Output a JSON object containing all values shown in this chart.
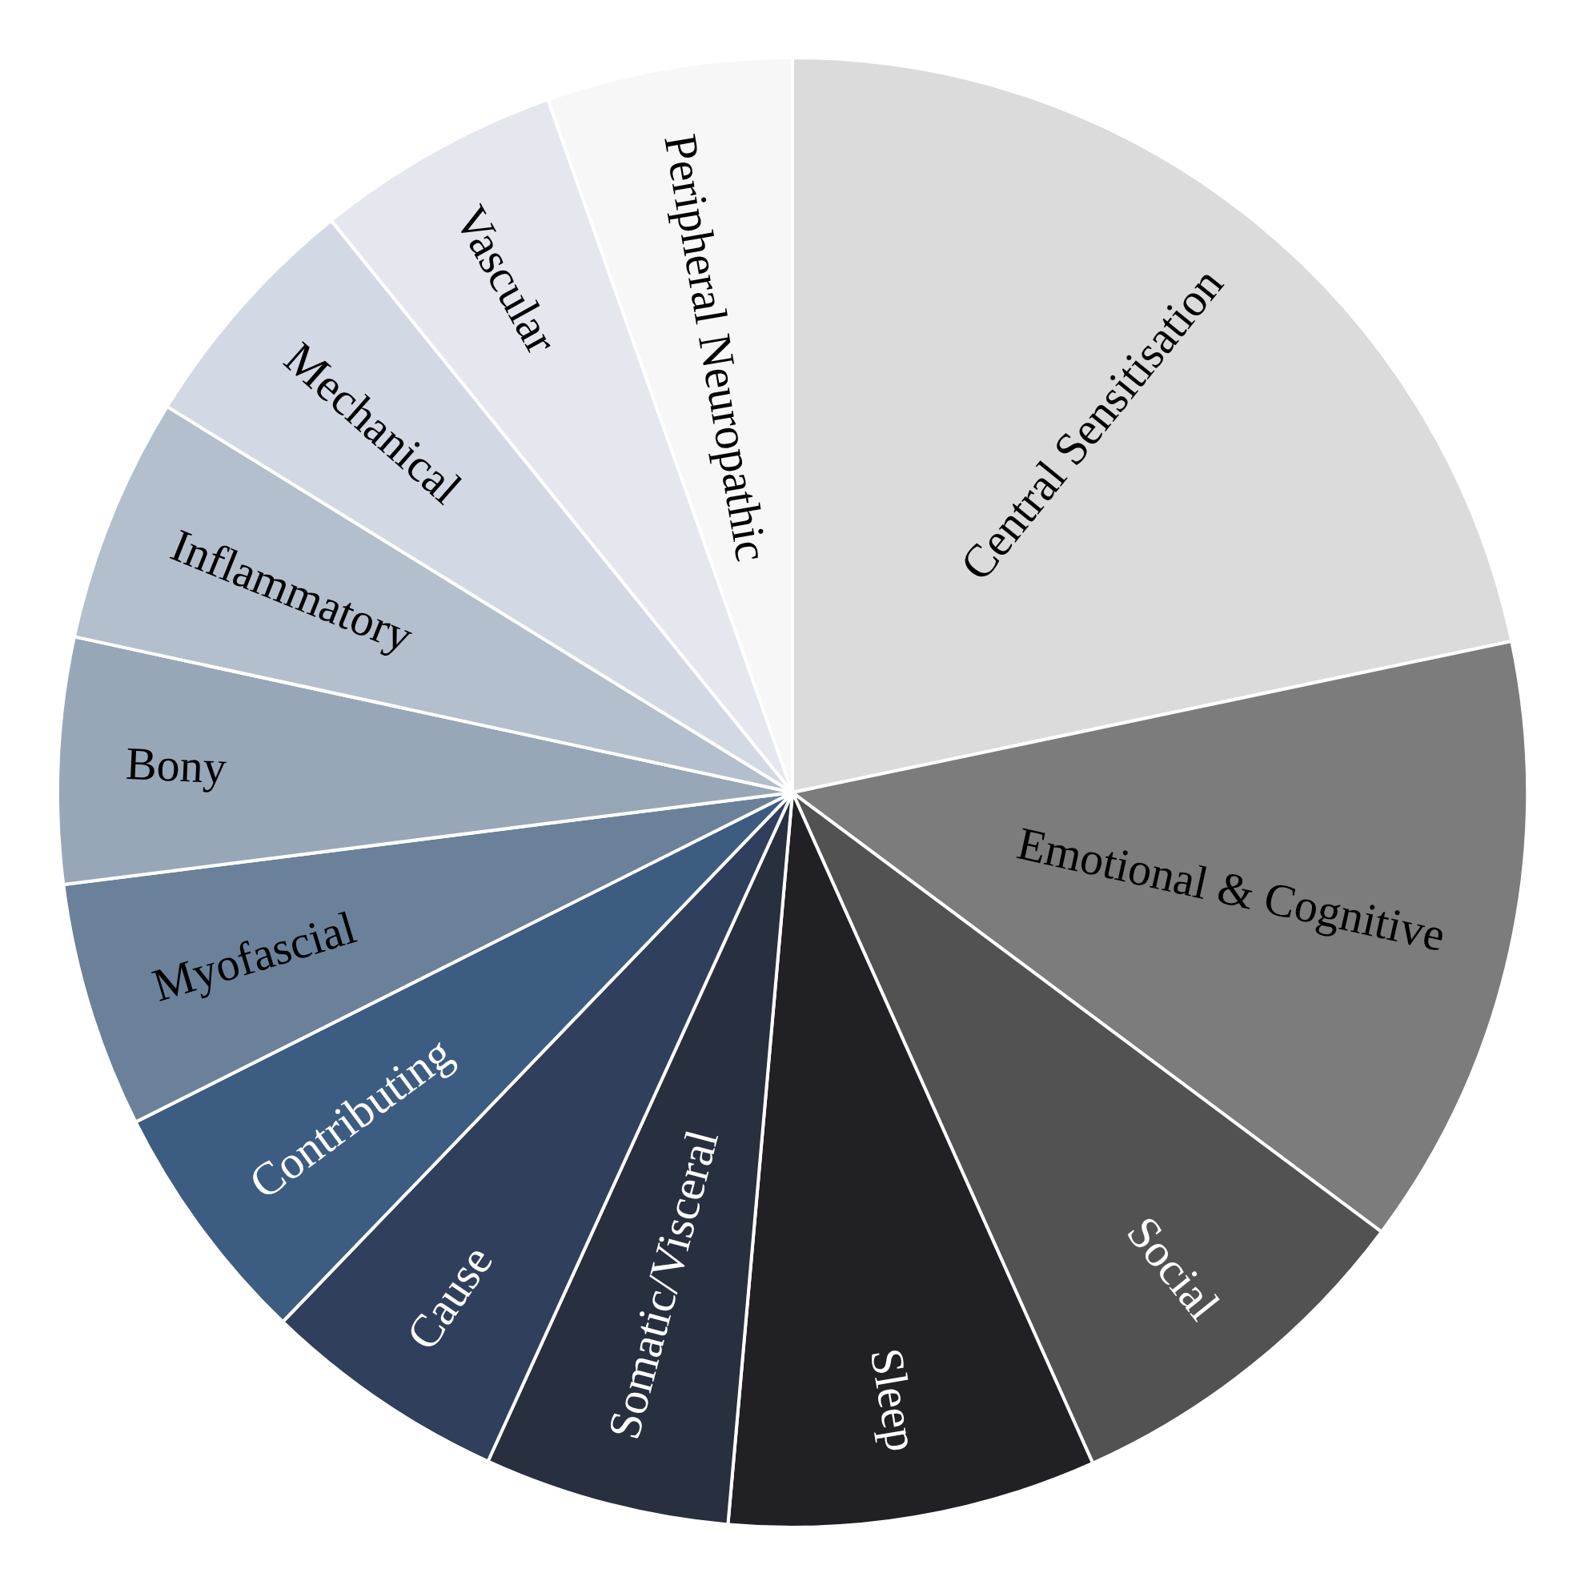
{
  "chart_data": {
    "type": "pie",
    "categories": [
      "Central Sensitisation",
      "Emotional & Cognitive",
      "Social",
      "Sleep",
      "Somatic/Visceral",
      "Cause",
      "Contributing",
      "Myofascial",
      "Bony",
      "Inflammatory",
      "Mechanical",
      "Vascular",
      "Peripheral Neuropathic"
    ],
    "values": [
      21.7,
      13.5,
      8.1,
      8.1,
      5.4,
      5.4,
      5.4,
      5.4,
      5.4,
      5.4,
      5.4,
      5.4,
      5.4
    ],
    "colors": [
      "#dbdbdb",
      "#7c7c7c",
      "#525252",
      "#202025",
      "#282f3f",
      "#303f5b",
      "#3d5c81",
      "#6a8199",
      "#97a7b8",
      "#b3bfcd",
      "#d3d8e5",
      "#e5e7ef",
      "#f7f7f7"
    ]
  }
}
